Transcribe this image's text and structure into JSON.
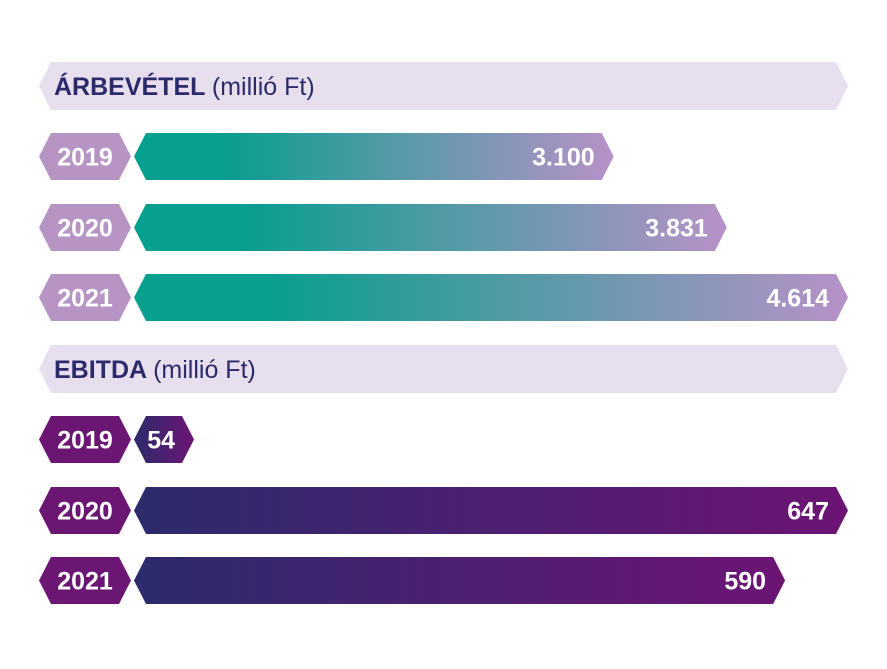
{
  "chart_data": [
    {
      "type": "bar",
      "orientation": "horizontal",
      "title": "ÁRBEVÉTEL",
      "unit": "(millió Ft)",
      "categories": [
        "2019",
        "2020",
        "2021"
      ],
      "values": [
        3100,
        3831,
        4614
      ],
      "value_labels": [
        "3.100",
        "3.831",
        "4.614"
      ],
      "colors": {
        "start": "#079f8d",
        "end": "#b792c8",
        "year_tag": "#b694c4"
      }
    },
    {
      "type": "bar",
      "orientation": "horizontal",
      "title": "EBITDA",
      "unit": "(millió Ft)",
      "categories": [
        "2019",
        "2020",
        "2021"
      ],
      "values": [
        54,
        647,
        590
      ],
      "value_labels": [
        "54",
        "647",
        "590"
      ],
      "colors": {
        "start": "#2b2b6b",
        "end": "#6c1474",
        "year_tag": "#6a1672"
      }
    }
  ],
  "colors": {
    "header_band": "#e8dfee",
    "header_text": "#2b2a6b"
  }
}
